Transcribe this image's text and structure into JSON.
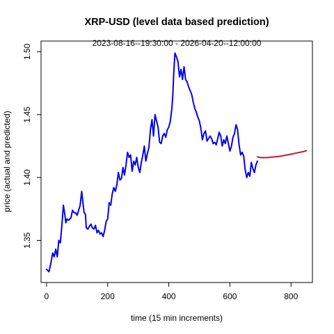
{
  "chart_data": {
    "type": "line",
    "title": "XRP-USD (level data based prediction)",
    "subtitle": "2023-08-16--19:30:00  -  2026-04-20--12:00:00",
    "xlabel": "time (15 min increments)",
    "ylabel": "price (actual and predicted)",
    "xlim": [
      -18,
      870
    ],
    "ylim": [
      1.3165,
      1.5085
    ],
    "x_ticks": [
      0,
      200,
      400,
      600,
      800
    ],
    "y_ticks": [
      1.35,
      1.4,
      1.45,
      1.5
    ],
    "y_tick_labels": [
      "1.35",
      "1.40",
      "1.45",
      "1.50"
    ],
    "grid": false,
    "legend": "none",
    "series": [
      {
        "role": "actual",
        "color": "#0000ee",
        "x": [
          0,
          8,
          15,
          20,
          25,
          30,
          35,
          40,
          45,
          50,
          55,
          60,
          63,
          67,
          72,
          80,
          85,
          90,
          95,
          100,
          110,
          115,
          120,
          123,
          127,
          130,
          135,
          140,
          145,
          150,
          155,
          160,
          165,
          170,
          175,
          180,
          185,
          190,
          195,
          200,
          205,
          210,
          215,
          220,
          225,
          230,
          235,
          240,
          245,
          250,
          255,
          260,
          265,
          270,
          275,
          280,
          285,
          290,
          295,
          300,
          305,
          310,
          315,
          320,
          325,
          330,
          335,
          340,
          345,
          350,
          355,
          360,
          365,
          370,
          375,
          380,
          385,
          390,
          395,
          400,
          405,
          410,
          413,
          416,
          420,
          425,
          430,
          435,
          440,
          445,
          450,
          455,
          460,
          465,
          470,
          475,
          480,
          485,
          490,
          495,
          500,
          505,
          510,
          515,
          520,
          525,
          530,
          535,
          540,
          545,
          550,
          555,
          560,
          565,
          570,
          575,
          580,
          585,
          590,
          595,
          600,
          605,
          610,
          615,
          620,
          625,
          630,
          635,
          640,
          645,
          650,
          655,
          660,
          665,
          670,
          675,
          680,
          685,
          690
        ],
        "y": [
          1.327,
          1.325,
          1.333,
          1.34,
          1.337,
          1.343,
          1.337,
          1.35,
          1.348,
          1.362,
          1.378,
          1.37,
          1.364,
          1.367,
          1.366,
          1.368,
          1.374,
          1.372,
          1.372,
          1.37,
          1.378,
          1.389,
          1.378,
          1.372,
          1.371,
          1.36,
          1.359,
          1.361,
          1.363,
          1.36,
          1.359,
          1.362,
          1.356,
          1.358,
          1.355,
          1.356,
          1.353,
          1.358,
          1.365,
          1.367,
          1.38,
          1.378,
          1.387,
          1.392,
          1.389,
          1.394,
          1.404,
          1.398,
          1.399,
          1.408,
          1.402,
          1.41,
          1.42,
          1.416,
          1.418,
          1.405,
          1.413,
          1.41,
          1.416,
          1.408,
          1.404,
          1.412,
          1.418,
          1.425,
          1.413,
          1.419,
          1.424,
          1.438,
          1.446,
          1.433,
          1.45,
          1.445,
          1.44,
          1.428,
          1.427,
          1.433,
          1.435,
          1.432,
          1.438,
          1.44,
          1.445,
          1.455,
          1.465,
          1.482,
          1.499,
          1.496,
          1.492,
          1.48,
          1.486,
          1.478,
          1.488,
          1.478,
          1.476,
          1.472,
          1.469,
          1.466,
          1.46,
          1.455,
          1.452,
          1.448,
          1.445,
          1.439,
          1.43,
          1.435,
          1.437,
          1.429,
          1.431,
          1.433,
          1.431,
          1.427,
          1.428,
          1.426,
          1.431,
          1.436,
          1.433,
          1.425,
          1.43,
          1.427,
          1.433,
          1.427,
          1.421,
          1.425,
          1.432,
          1.435,
          1.442,
          1.438,
          1.426,
          1.418,
          1.42,
          1.417,
          1.406,
          1.4,
          1.404,
          1.401,
          1.412,
          1.407,
          1.404,
          1.41,
          1.413
        ]
      },
      {
        "role": "predicted",
        "color": "#c8142d",
        "x": [
          690,
          700,
          720,
          740,
          760,
          780,
          800,
          820,
          840,
          850
        ],
        "y": [
          1.4165,
          1.4158,
          1.4158,
          1.4163,
          1.4168,
          1.4176,
          1.4186,
          1.4196,
          1.4206,
          1.4213
        ]
      }
    ]
  }
}
